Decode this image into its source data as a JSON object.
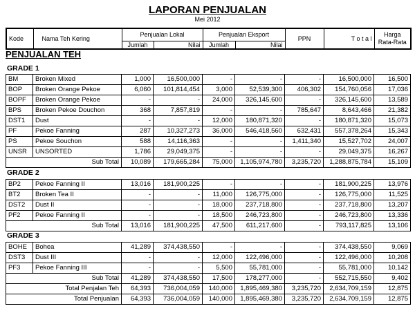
{
  "title": "LAPORAN PENJUALAN",
  "subtitle": "Mei 2012",
  "header": {
    "kode": "Kode",
    "nama": "Nama Teh Kering",
    "lokal": "Penjualan Lokal",
    "eksport": "Penjualan Eksport",
    "jumlah": "Jumlah",
    "nilai": "Nilai",
    "ppn": "PPN",
    "total": "T o t a l",
    "harga1": "Harga",
    "harga2": "Rata-Rata"
  },
  "section": "PENJUALAN TEH",
  "grades": [
    {
      "label": "GRADE 1",
      "rows": [
        [
          "BM",
          "Broken Mixed",
          "1,000",
          "16,500,000",
          "-",
          "-",
          "-",
          "16,500,000",
          "16,500"
        ],
        [
          "BOP",
          "Broken Orange Pekoe",
          "6,060",
          "101,814,454",
          "3,000",
          "52,539,300",
          "406,302",
          "154,760,056",
          "17,036"
        ],
        [
          "BOPF",
          "Broken Orange Pekoe",
          "-",
          "-",
          "24,000",
          "326,145,600",
          "-",
          "326,145,600",
          "13,589"
        ],
        [
          "BPS",
          "Broken Pekoe Douchon",
          "368",
          "7,857,819",
          "-",
          "-",
          "785,647",
          "8,643,466",
          "21,382"
        ],
        [
          "DST1",
          "Dust",
          "-",
          "-",
          "12,000",
          "180,871,320",
          "-",
          "180,871,320",
          "15,073"
        ],
        [
          "PF",
          "Pekoe Fanning",
          "287",
          "10,327,273",
          "36,000",
          "546,418,560",
          "632,431",
          "557,378,264",
          "15,343"
        ],
        [
          "PS",
          "Pekoe Souchon",
          "588",
          "14,116,363",
          "-",
          "-",
          "1,411,340",
          "15,527,702",
          "24,007"
        ],
        [
          "UNSR",
          "UNSORTED",
          "1,786",
          "29,049,375",
          "-",
          "-",
          "-",
          "29,049,375",
          "16,267"
        ]
      ],
      "totals": [
        [
          "Sub Total",
          "10,089",
          "179,665,284",
          "75,000",
          "1,105,974,780",
          "3,235,720",
          "1,288,875,784",
          "15,109"
        ]
      ]
    },
    {
      "label": "GRADE 2",
      "rows": [
        [
          "BP2",
          "Pekoe Fanning II",
          "13,016",
          "181,900,225",
          "-",
          "-",
          "-",
          "181,900,225",
          "13,976"
        ],
        [
          "BT2",
          "Broken Tea II",
          "-",
          "-",
          "11,000",
          "126,775,000",
          "-",
          "126,775,000",
          "11,525"
        ],
        [
          "DST2",
          "Dust II",
          "-",
          "-",
          "18,000",
          "237,718,800",
          "-",
          "237,718,800",
          "13,207"
        ],
        [
          "PF2",
          "Pekoe Fanning II",
          "-",
          "-",
          "18,500",
          "246,723,800",
          "-",
          "246,723,800",
          "13,336"
        ]
      ],
      "totals": [
        [
          "Sub Total",
          "13,016",
          "181,900,225",
          "47,500",
          "611,217,600",
          "-",
          "793,117,825",
          "13,106"
        ]
      ]
    },
    {
      "label": "GRADE 3",
      "rows": [
        [
          "BOHE",
          "Bohea",
          "41,289",
          "374,438,550",
          "-",
          "-",
          "-",
          "374,438,550",
          "9,069"
        ],
        [
          "DST3",
          "Dust III",
          "-",
          "-",
          "12,000",
          "122,496,000",
          "-",
          "122,496,000",
          "10,208"
        ],
        [
          "PF3",
          "Pekoe Fanning III",
          "-",
          "-",
          "5,500",
          "55,781,000",
          "-",
          "55,781,000",
          "10,142"
        ]
      ],
      "totals": [
        [
          "Sub Total",
          "41,289",
          "374,438,550",
          "17,500",
          "178,277,000",
          "-",
          "552,715,550",
          "9,402"
        ],
        [
          "Total Penjalan Teh",
          "64,393",
          "736,004,059",
          "140,000",
          "1,895,469,380",
          "3,235,720",
          "2,634,709,159",
          "12,875"
        ],
        [
          "Total  Penjualan",
          "64,393",
          "736,004,059",
          "140,000",
          "1,895,469,380",
          "3,235,720",
          "2,634,709,159",
          "12,875"
        ]
      ]
    }
  ]
}
